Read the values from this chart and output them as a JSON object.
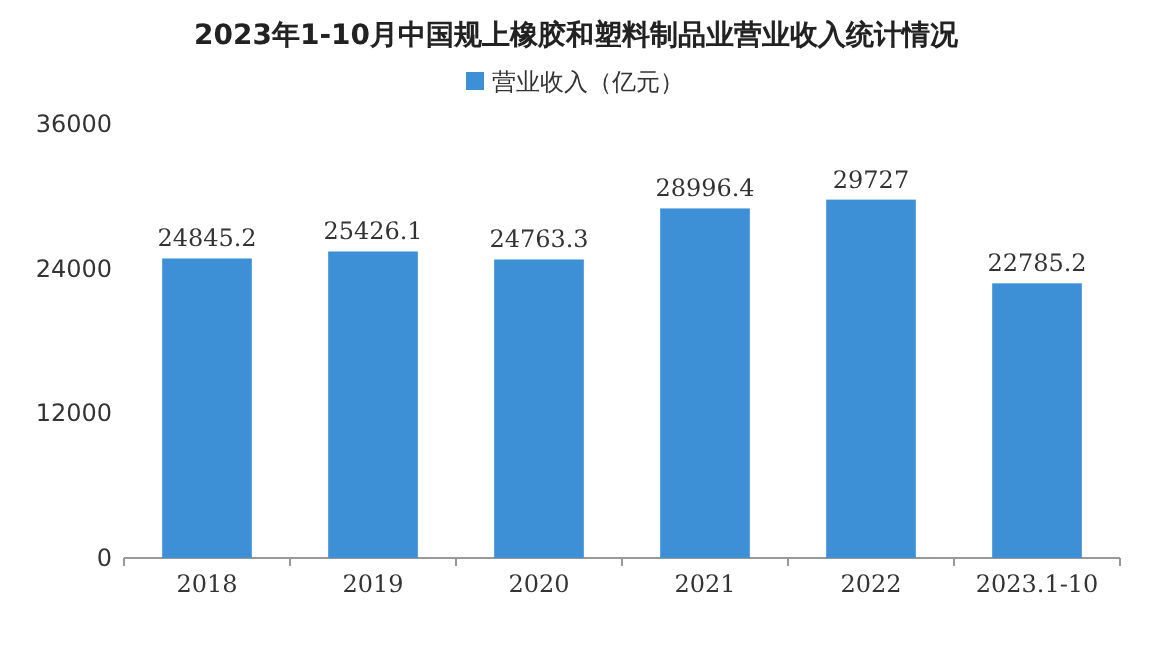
{
  "chart_data": {
    "type": "bar",
    "title": "2023年1-10月中国规上橡胶和塑料制品业营业收入统计情况",
    "categories": [
      "2018",
      "2019",
      "2020",
      "2021",
      "2022",
      "2023.1-10"
    ],
    "series": [
      {
        "name": "营业收入（亿元）",
        "color": "#3d8fd6",
        "values": [
          24845.2,
          25426.1,
          24763.3,
          28996.4,
          29727,
          22785.2
        ]
      }
    ],
    "ylim": [
      0,
      36000
    ],
    "yticks": [
      0,
      12000,
      24000,
      36000
    ],
    "data_labels": true,
    "legend": "top",
    "grid": false
  }
}
